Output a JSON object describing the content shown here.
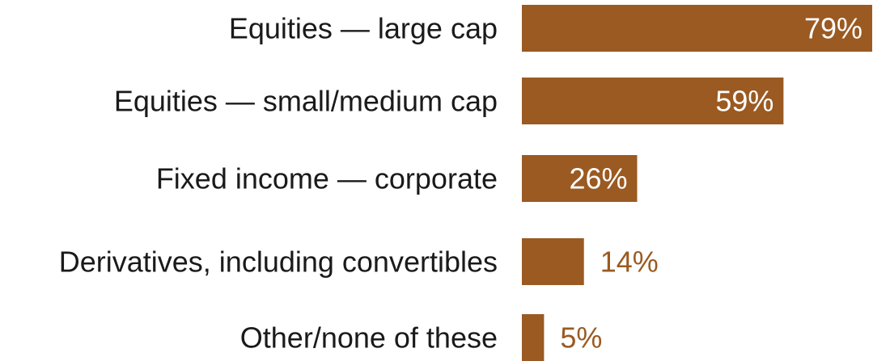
{
  "chart_data": {
    "type": "bar",
    "orientation": "horizontal",
    "categories": [
      "Equities — large cap",
      "Equities — small/medium cap",
      "Fixed income — corporate",
      "Derivatives, including convertibles",
      "Other/none of these"
    ],
    "values": [
      79,
      59,
      26,
      14,
      5
    ],
    "value_labels": [
      "79%",
      "59%",
      "26%",
      "14%",
      "5%"
    ],
    "xlim": [
      0,
      79
    ],
    "grid": false,
    "legend": "none"
  },
  "colors": {
    "bar": "#9a5a22",
    "label_inside": "#ffffff",
    "label_outside": "#9a5a22",
    "category_text": "#1a1a1a",
    "background": "#ffffff"
  }
}
